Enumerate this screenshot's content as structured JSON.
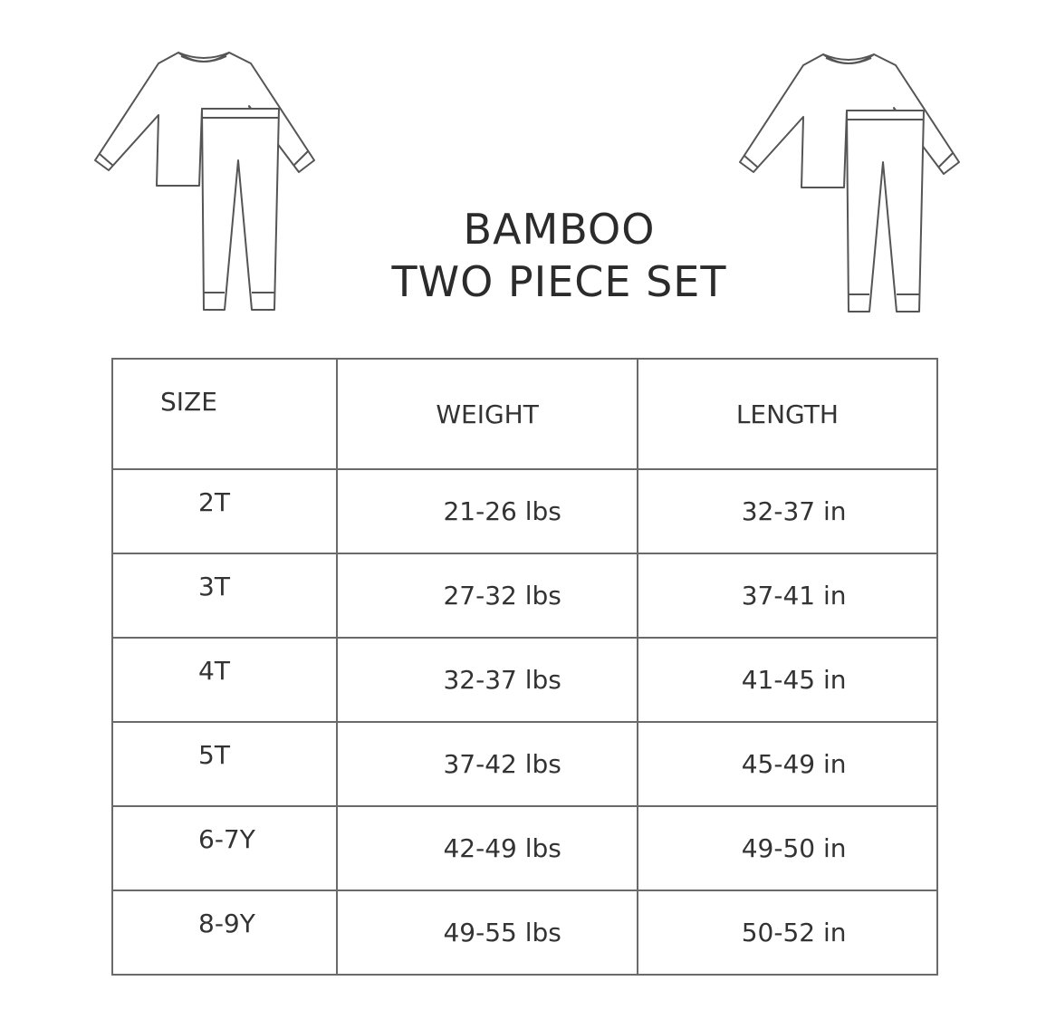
{
  "title": {
    "line1": "BAMBOO",
    "line2": "TWO PIECE SET"
  },
  "illustrations": [
    "pajama-set-icon",
    "pajama-set-icon"
  ],
  "table": {
    "headers": [
      "SIZE",
      "WEIGHT",
      "LENGTH"
    ],
    "rows": [
      [
        "2T",
        "21-26 lbs",
        "32-37 in"
      ],
      [
        "3T",
        "27-32 lbs",
        "37-41 in"
      ],
      [
        "4T",
        "32-37 lbs",
        "41-45 in"
      ],
      [
        "5T",
        "37-42 lbs",
        "45-49 in"
      ],
      [
        "6-7Y",
        "42-49 lbs",
        "49-50 in"
      ],
      [
        "8-9Y",
        "49-55 lbs",
        "50-52 in"
      ]
    ]
  }
}
